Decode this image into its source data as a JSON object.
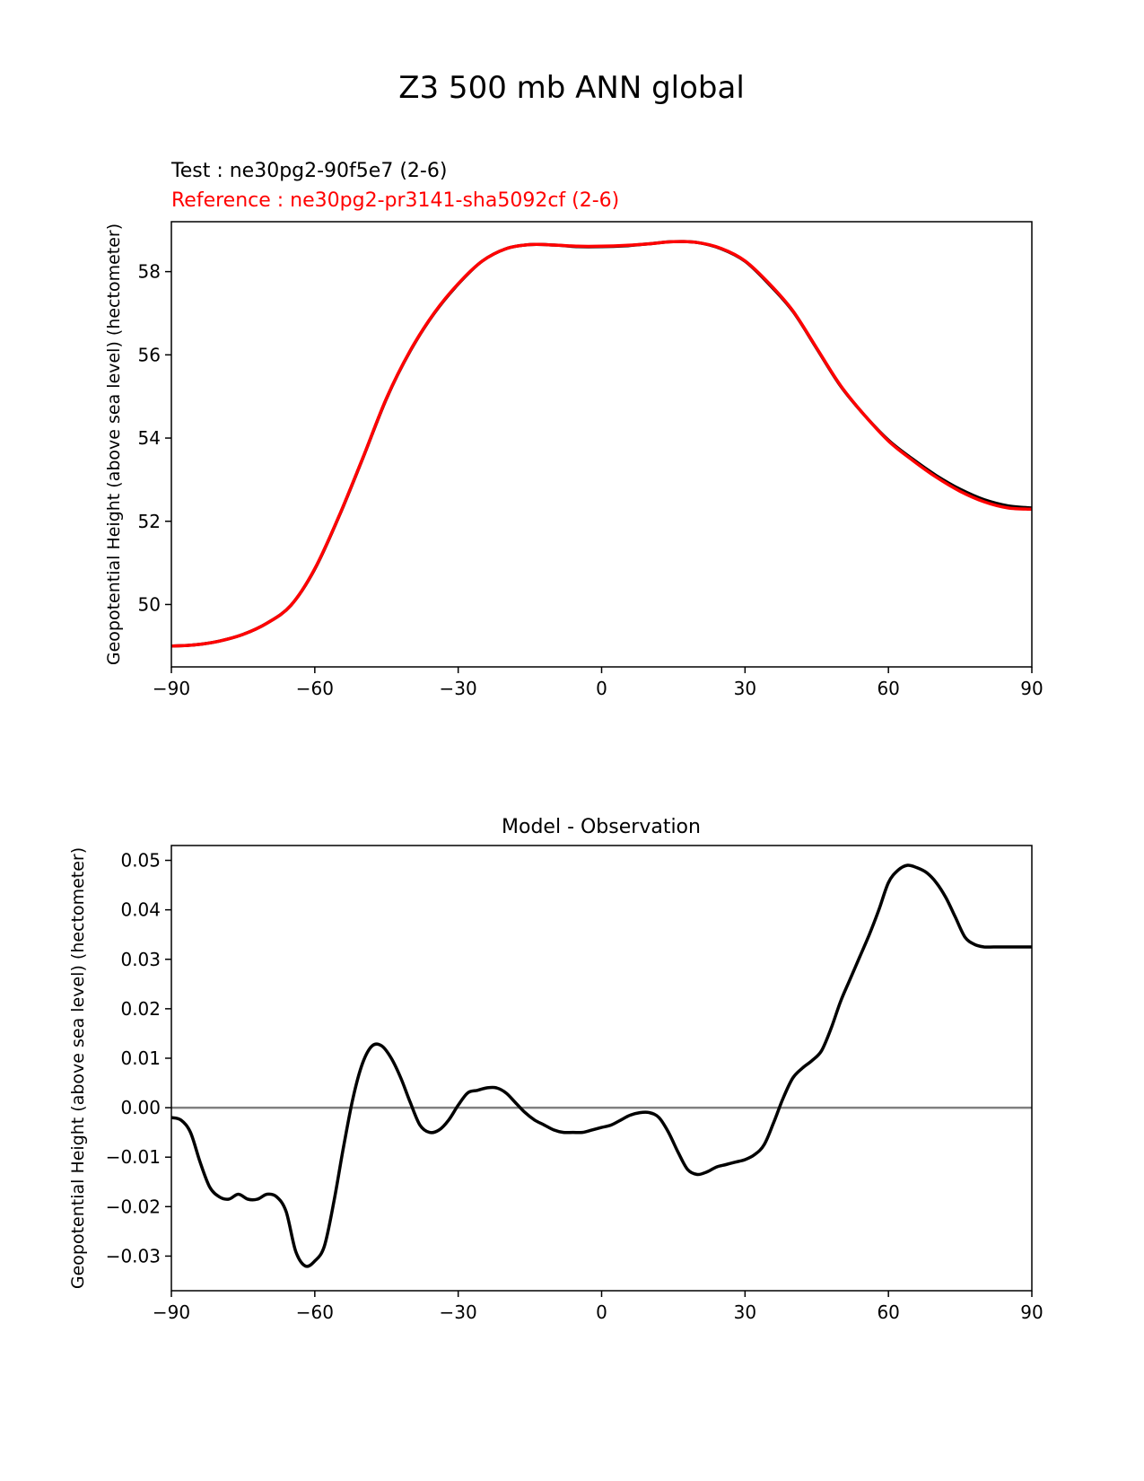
{
  "figure_title": "Z3 500 mb ANN global",
  "chart_data": [
    {
      "type": "line",
      "legend": {
        "test_label": "Test : ne30pg2-90f5e7 (2-6)",
        "reference_label": "Reference : ne30pg2-pr3141-sha5092cf (2-6)",
        "placement": "top-left"
      },
      "xlabel": "",
      "ylabel": "Geopotential Height (above sea level) (hectometer)",
      "xlim": [
        -90,
        90
      ],
      "ylim": [
        48.5,
        59.2
      ],
      "xticks": [
        -90,
        -60,
        -30,
        0,
        30,
        60,
        90
      ],
      "xtick_labels": [
        "−90",
        "−60",
        "−30",
        "0",
        "30",
        "60",
        "90"
      ],
      "yticks": [
        50,
        52,
        54,
        56,
        58
      ],
      "ytick_labels": [
        "50",
        "52",
        "54",
        "56",
        "58"
      ],
      "x": [
        -90,
        -85,
        -80,
        -75,
        -70,
        -65,
        -60,
        -55,
        -50,
        -45,
        -40,
        -35,
        -30,
        -25,
        -20,
        -15,
        -10,
        -5,
        0,
        5,
        10,
        15,
        20,
        25,
        30,
        35,
        40,
        45,
        50,
        55,
        60,
        65,
        70,
        75,
        80,
        85,
        90
      ],
      "series": [
        {
          "name": "Test",
          "color": "#000000",
          "values": [
            49.0,
            49.03,
            49.12,
            49.28,
            49.55,
            49.98,
            50.85,
            52.1,
            53.5,
            54.95,
            56.1,
            57.0,
            57.7,
            58.25,
            58.55,
            58.65,
            58.64,
            58.6,
            58.6,
            58.62,
            58.67,
            58.72,
            58.7,
            58.55,
            58.25,
            57.7,
            57.05,
            56.15,
            55.25,
            54.55,
            53.95,
            53.5,
            53.1,
            52.77,
            52.52,
            52.37,
            52.32
          ]
        },
        {
          "name": "Reference",
          "color": "#ff0000",
          "values": [
            49.0,
            49.03,
            49.12,
            49.28,
            49.55,
            49.98,
            50.86,
            52.11,
            53.51,
            54.96,
            56.11,
            57.01,
            57.71,
            58.25,
            58.55,
            58.65,
            58.64,
            58.61,
            58.61,
            58.63,
            58.67,
            58.72,
            58.7,
            58.56,
            58.26,
            57.72,
            57.06,
            56.16,
            55.26,
            54.55,
            53.93,
            53.47,
            53.06,
            52.72,
            52.47,
            52.32,
            52.29
          ]
        }
      ]
    },
    {
      "type": "line",
      "title": "Model - Observation",
      "xlabel": "",
      "ylabel": "Geopotential Height (above sea level) (hectometer)",
      "xlim": [
        -90,
        90
      ],
      "ylim": [
        -0.037,
        0.053
      ],
      "xticks": [
        -90,
        -60,
        -30,
        0,
        30,
        60,
        90
      ],
      "xtick_labels": [
        "−90",
        "−60",
        "−30",
        "0",
        "30",
        "60",
        "90"
      ],
      "yticks": [
        -0.03,
        -0.02,
        -0.01,
        0.0,
        0.01,
        0.02,
        0.03,
        0.04,
        0.05
      ],
      "ytick_labels": [
        "−0.03",
        "−0.02",
        "−0.01",
        "0.00",
        "0.01",
        "0.02",
        "0.03",
        "0.04",
        "0.05"
      ],
      "reference_line": {
        "y": 0.0,
        "color": "#808080"
      },
      "x": [
        -90,
        -88,
        -86,
        -84,
        -82,
        -80,
        -78,
        -76,
        -74,
        -72,
        -70,
        -68,
        -66,
        -64,
        -62,
        -60,
        -58,
        -56,
        -54,
        -52,
        -50,
        -48,
        -46,
        -44,
        -42,
        -40,
        -38,
        -36,
        -34,
        -32,
        -30,
        -28,
        -26,
        -24,
        -22,
        -20,
        -18,
        -16,
        -14,
        -12,
        -10,
        -8,
        -6,
        -4,
        -2,
        0,
        2,
        4,
        6,
        8,
        10,
        12,
        14,
        16,
        18,
        20,
        22,
        24,
        26,
        28,
        30,
        32,
        34,
        36,
        38,
        40,
        42,
        44,
        46,
        48,
        50,
        52,
        54,
        56,
        58,
        60,
        62,
        64,
        66,
        68,
        70,
        72,
        74,
        76,
        78,
        80,
        82,
        84,
        86,
        88,
        90
      ],
      "series": [
        {
          "name": "Model - Observation",
          "color": "#000000",
          "values": [
            -0.002,
            -0.0025,
            -0.005,
            -0.011,
            -0.016,
            -0.018,
            -0.0185,
            -0.0175,
            -0.0185,
            -0.0185,
            -0.0175,
            -0.018,
            -0.021,
            -0.029,
            -0.032,
            -0.031,
            -0.028,
            -0.019,
            -0.008,
            0.002,
            0.009,
            0.0125,
            0.0125,
            0.01,
            0.006,
            0.001,
            -0.0035,
            -0.005,
            -0.0045,
            -0.0025,
            0.0005,
            0.003,
            0.0035,
            0.004,
            0.004,
            0.003,
            0.001,
            -0.001,
            -0.0025,
            -0.0035,
            -0.0045,
            -0.005,
            -0.005,
            -0.005,
            -0.0045,
            -0.004,
            -0.0035,
            -0.0025,
            -0.0015,
            -0.001,
            -0.001,
            -0.002,
            -0.005,
            -0.009,
            -0.0125,
            -0.0135,
            -0.013,
            -0.012,
            -0.0115,
            -0.011,
            -0.0105,
            -0.0095,
            -0.0075,
            -0.003,
            0.002,
            0.006,
            0.008,
            0.0095,
            0.0115,
            0.016,
            0.0215,
            0.026,
            0.0305,
            0.035,
            0.04,
            0.0455,
            0.048,
            0.049,
            0.0485,
            0.0475,
            0.0455,
            0.0425,
            0.0385,
            0.0345,
            0.033,
            0.0325,
            0.0325,
            0.0325,
            0.0325,
            0.0325,
            0.0325
          ]
        }
      ]
    }
  ]
}
